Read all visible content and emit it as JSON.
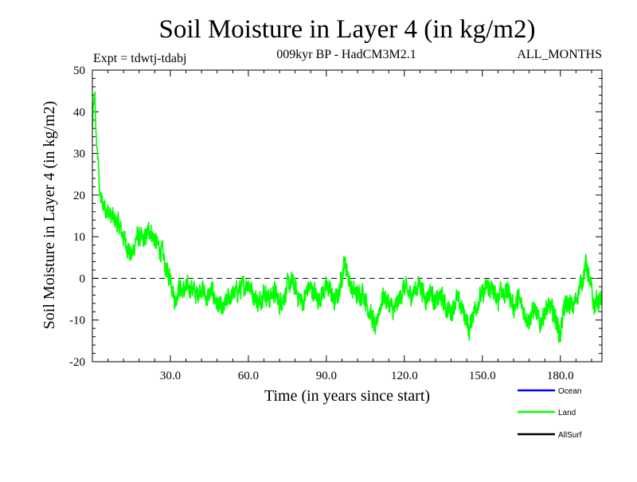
{
  "chart_data": {
    "type": "line",
    "title": "Soil Moisture in Layer 4 (in kg/m2)",
    "subtitle_left": "Expt = tdwtj-tdabj",
    "subtitle_center": "009kyr BP - HadCM3M2.1",
    "subtitle_right": "ALL_MONTHS",
    "xlabel": "Time (in years since start)",
    "ylabel": "Soil Moisture in Layer 4 (in kg/m2)",
    "xlim": [
      0,
      196
    ],
    "ylim": [
      -20,
      50
    ],
    "xticks": [
      30,
      60,
      90,
      120,
      150,
      180
    ],
    "xtick_labels": [
      "30.0",
      "60.0",
      "90.0",
      "120.0",
      "150.0",
      "180.0"
    ],
    "yticks": [
      -20,
      -10,
      0,
      10,
      20,
      30,
      40,
      50
    ],
    "ytick_labels": [
      "-20",
      "-10",
      "0",
      "10",
      "20",
      "30",
      "40",
      "50"
    ],
    "zero_line": "dashed",
    "legend": [
      {
        "name": "Ocean",
        "color": "#0000ff"
      },
      {
        "name": "Land",
        "color": "#00ff00"
      },
      {
        "name": "AllSurf",
        "color": "#000000"
      }
    ],
    "series": [
      {
        "name": "Land",
        "color": "#00ff00",
        "anchors": [
          [
            0,
            36
          ],
          [
            0.5,
            42
          ],
          [
            1,
            44
          ],
          [
            1.5,
            33
          ],
          [
            2,
            30
          ],
          [
            2.5,
            25
          ],
          [
            3,
            19
          ],
          [
            5,
            17
          ],
          [
            7,
            15
          ],
          [
            10,
            13
          ],
          [
            12,
            10
          ],
          [
            14,
            7
          ],
          [
            15,
            5
          ],
          [
            17,
            10
          ],
          [
            20,
            9
          ],
          [
            22,
            12
          ],
          [
            25,
            8
          ],
          [
            27,
            6
          ],
          [
            28,
            3
          ],
          [
            29,
            1
          ],
          [
            30,
            1
          ],
          [
            31,
            -3
          ],
          [
            32,
            -6
          ],
          [
            33,
            -2
          ],
          [
            35,
            -3
          ],
          [
            38,
            -2
          ],
          [
            40,
            -4
          ],
          [
            42,
            -2
          ],
          [
            44,
            -5
          ],
          [
            46,
            -3
          ],
          [
            48,
            -6
          ],
          [
            50,
            -8
          ],
          [
            52,
            -5
          ],
          [
            54,
            -4
          ],
          [
            56,
            -3
          ],
          [
            58,
            -2
          ],
          [
            60,
            -1
          ],
          [
            62,
            -4
          ],
          [
            64,
            -6
          ],
          [
            66,
            -3
          ],
          [
            68,
            -5
          ],
          [
            70,
            -3
          ],
          [
            72,
            -6
          ],
          [
            74,
            -4
          ],
          [
            75,
            -2
          ],
          [
            77,
            -1
          ],
          [
            79,
            -4
          ],
          [
            81,
            -6
          ],
          [
            83,
            -2
          ],
          [
            85,
            -3
          ],
          [
            87,
            -5
          ],
          [
            89,
            -3
          ],
          [
            91,
            -2
          ],
          [
            93,
            -6
          ],
          [
            95,
            -3
          ],
          [
            96,
            1
          ],
          [
            97,
            4
          ],
          [
            98,
            2
          ],
          [
            99,
            -1
          ],
          [
            100,
            -3
          ],
          [
            102,
            -4
          ],
          [
            104,
            -3
          ],
          [
            106,
            -7
          ],
          [
            108,
            -10
          ],
          [
            109,
            -13
          ],
          [
            110,
            -8
          ],
          [
            112,
            -4
          ],
          [
            114,
            -6
          ],
          [
            116,
            -8
          ],
          [
            118,
            -5
          ],
          [
            120,
            -2
          ],
          [
            122,
            -4
          ],
          [
            124,
            -3
          ],
          [
            126,
            -1
          ],
          [
            128,
            -5
          ],
          [
            130,
            -3
          ],
          [
            132,
            -6
          ],
          [
            134,
            -4
          ],
          [
            136,
            -7
          ],
          [
            138,
            -8
          ],
          [
            140,
            -5
          ],
          [
            142,
            -7
          ],
          [
            144,
            -10
          ],
          [
            145,
            -13
          ],
          [
            146,
            -9
          ],
          [
            148,
            -6
          ],
          [
            150,
            -4
          ],
          [
            152,
            -2
          ],
          [
            154,
            -3
          ],
          [
            156,
            -6
          ],
          [
            157,
            -1
          ],
          [
            158,
            -4
          ],
          [
            160,
            -3
          ],
          [
            162,
            -7
          ],
          [
            164,
            -5
          ],
          [
            166,
            -8
          ],
          [
            168,
            -10
          ],
          [
            170,
            -7
          ],
          [
            172,
            -11
          ],
          [
            174,
            -8
          ],
          [
            176,
            -7
          ],
          [
            178,
            -9
          ],
          [
            180,
            -14
          ],
          [
            181,
            -8
          ],
          [
            183,
            -6
          ],
          [
            185,
            -7
          ],
          [
            187,
            -3
          ],
          [
            189,
            1
          ],
          [
            190,
            4
          ],
          [
            191,
            0
          ],
          [
            192,
            -3
          ],
          [
            193,
            -7
          ],
          [
            194,
            -5
          ],
          [
            195,
            -6
          ],
          [
            196,
            -4
          ]
        ]
      }
    ]
  }
}
